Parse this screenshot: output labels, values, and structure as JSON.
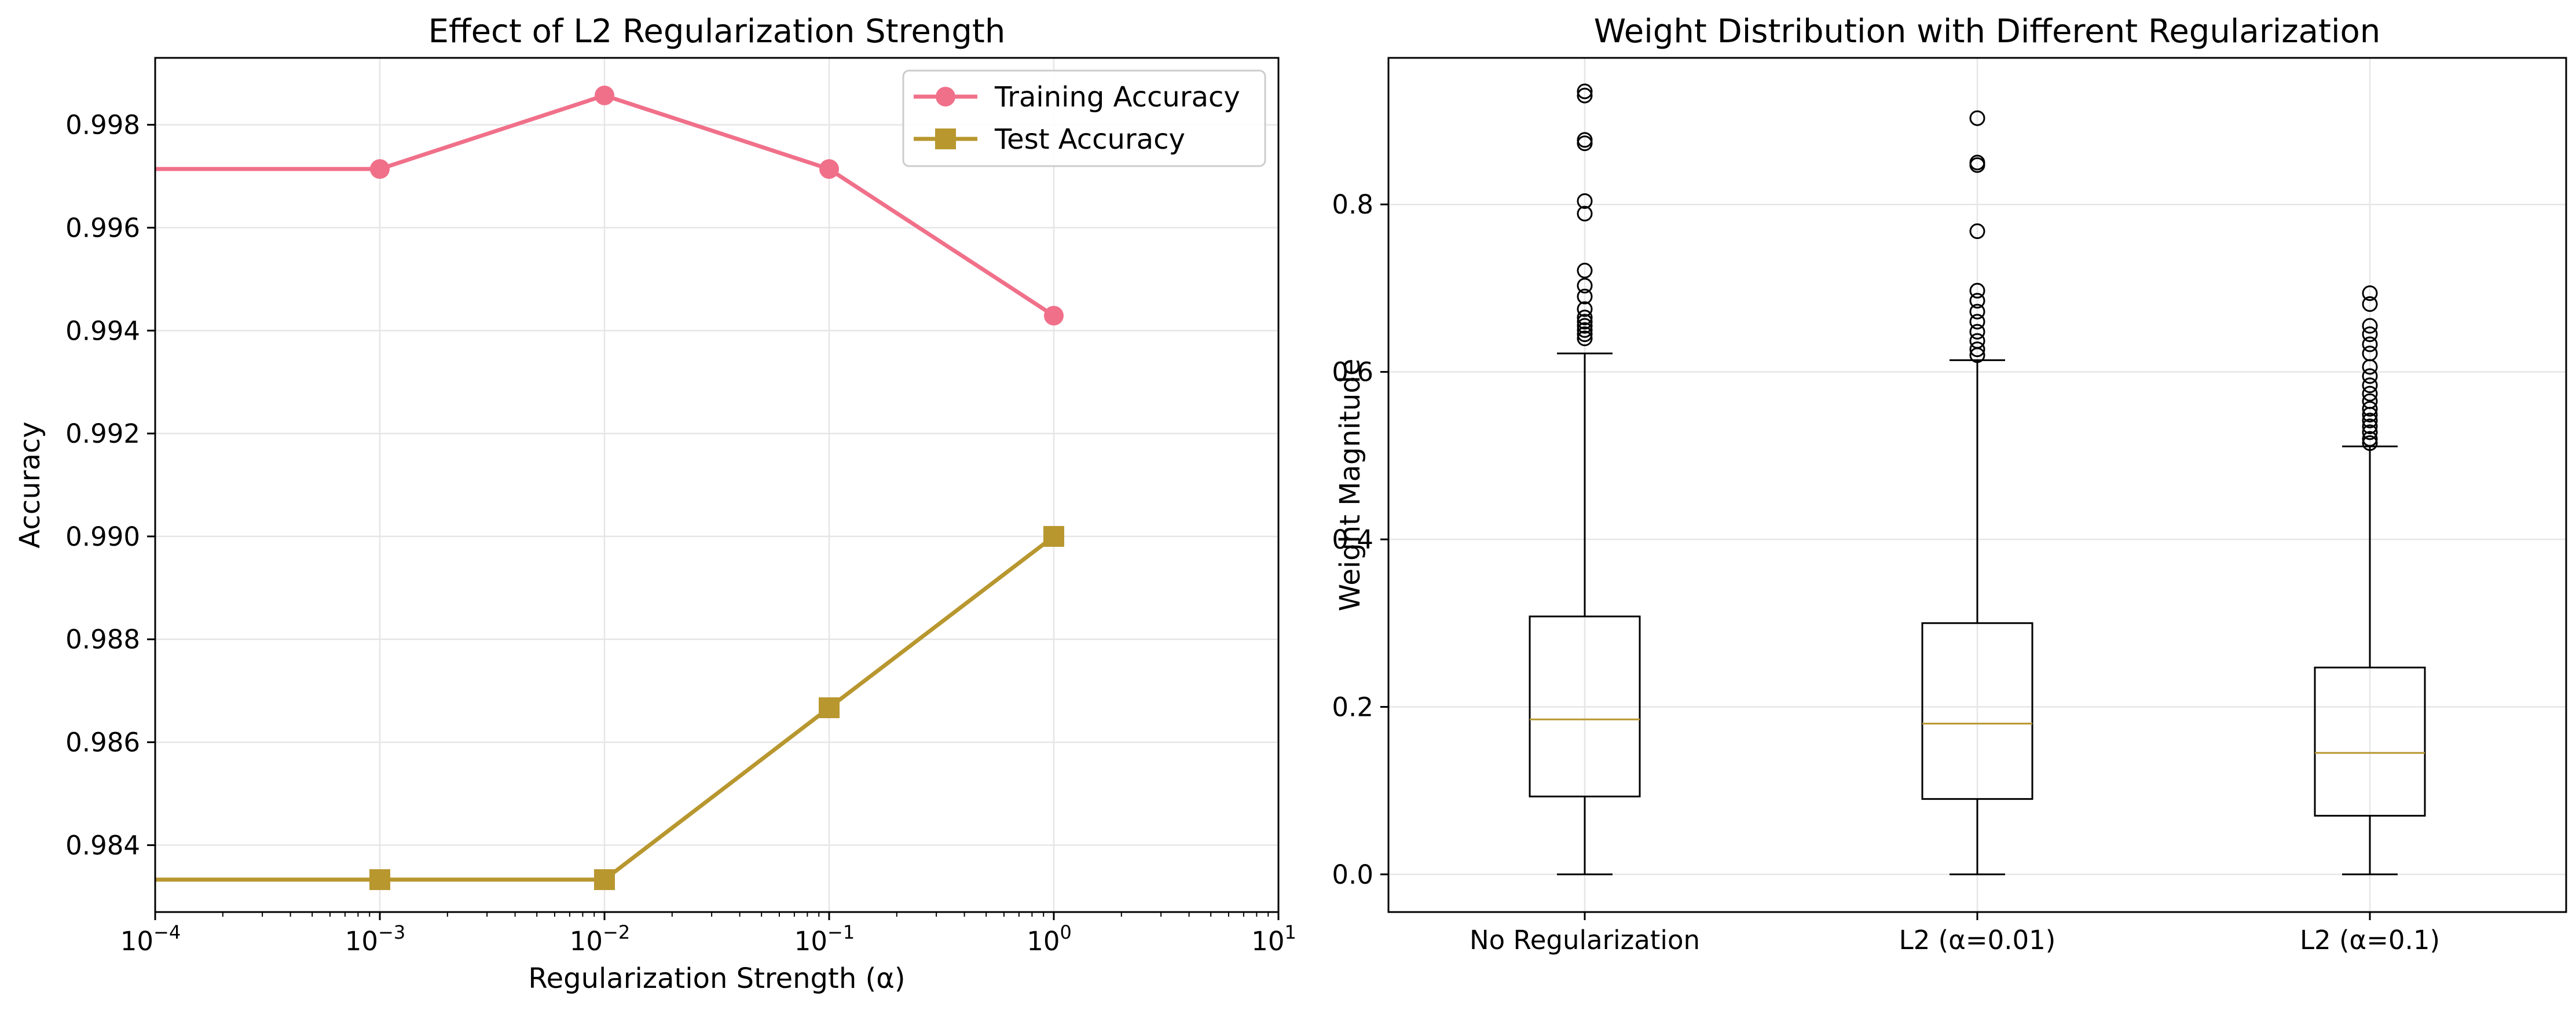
{
  "chart_data": [
    {
      "type": "line",
      "title": "Effect of L2 Regularization Strength",
      "xlabel": "Regularization Strength (α)",
      "ylabel": "Accuracy",
      "xscale": "log",
      "xlim": [
        0.0001,
        10
      ],
      "ylim": [
        0.9827,
        0.9993
      ],
      "x_ticks": [
        {
          "base": "10",
          "exp": "−4"
        },
        {
          "base": "10",
          "exp": "−3"
        },
        {
          "base": "10",
          "exp": "−2"
        },
        {
          "base": "10",
          "exp": "−1"
        },
        {
          "base": "10",
          "exp": "0"
        },
        {
          "base": "10",
          "exp": "1"
        }
      ],
      "y_ticks": [
        "0.984",
        "0.986",
        "0.988",
        "0.990",
        "0.992",
        "0.994",
        "0.996",
        "0.998"
      ],
      "grid": true,
      "legend_position": "top-right",
      "x": [
        0.0001,
        0.001,
        0.01,
        0.1,
        1
      ],
      "series": [
        {
          "name": "Training Accuracy",
          "values": [
            0.99714,
            0.99714,
            0.99857,
            0.99714,
            0.99429
          ],
          "color": "#f0708a",
          "marker": "circle",
          "marker_on_first": false
        },
        {
          "name": "Test Accuracy",
          "values": [
            0.98333,
            0.98333,
            0.98333,
            0.98667,
            0.99
          ],
          "color": "#b8972f",
          "marker": "square",
          "marker_on_first": false
        }
      ]
    },
    {
      "type": "box",
      "title": "Weight Distribution with Different Regularization",
      "xlabel": "",
      "ylabel": "Weight Magnitude",
      "ylim": [
        -0.045,
        0.975
      ],
      "y_ticks": [
        "0.0",
        "0.2",
        "0.4",
        "0.6",
        "0.8"
      ],
      "grid": true,
      "median_color": "#b8972f",
      "categories": [
        "No Regularization",
        "L2 (α=0.01)",
        "L2 (α=0.1)"
      ],
      "boxes": [
        {
          "whisker_low": 0.0,
          "q1": 0.093,
          "median": 0.185,
          "q3": 0.308,
          "whisker_high": 0.622,
          "outliers": [
            0.935,
            0.93,
            0.877,
            0.873,
            0.804,
            0.789,
            0.721,
            0.703,
            0.69,
            0.675,
            0.665,
            0.66,
            0.655,
            0.65,
            0.645,
            0.64
          ]
        },
        {
          "whisker_low": 0.0,
          "q1": 0.09,
          "median": 0.18,
          "q3": 0.3,
          "whisker_high": 0.614,
          "outliers": [
            0.903,
            0.85,
            0.847,
            0.768,
            0.697,
            0.685,
            0.672,
            0.66,
            0.648,
            0.637,
            0.627,
            0.62
          ]
        },
        {
          "whisker_low": 0.0,
          "q1": 0.07,
          "median": 0.145,
          "q3": 0.247,
          "whisker_high": 0.511,
          "outliers": [
            0.694,
            0.681,
            0.655,
            0.645,
            0.633,
            0.622,
            0.606,
            0.595,
            0.584,
            0.574,
            0.565,
            0.556,
            0.549,
            0.542,
            0.535,
            0.528,
            0.52,
            0.515
          ]
        }
      ]
    }
  ]
}
